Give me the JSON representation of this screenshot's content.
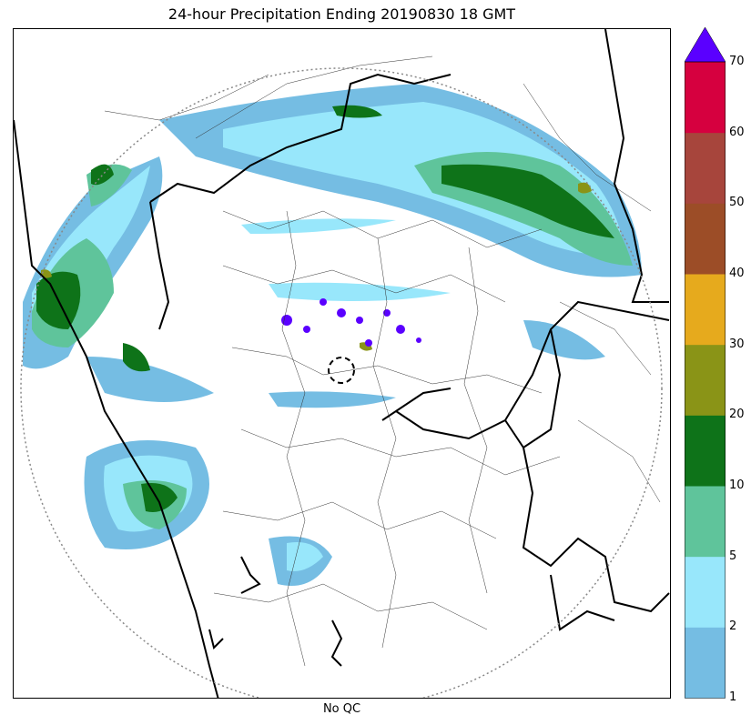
{
  "title": "24-hour Precipitation Ending 20190830 18 GMT",
  "xlabel": "No QC",
  "colorbar": {
    "levels": [
      "1",
      "2",
      "5",
      "10",
      "20",
      "30",
      "40",
      "50",
      "60",
      "70"
    ],
    "colors": [
      "#75bde3",
      "#98e7fb",
      "#5fc49b",
      "#0e7319",
      "#8a9417",
      "#e6aa1d",
      "#9c4d27",
      "#a7453c",
      "#d6003f"
    ],
    "extend_max_color": "#5a00ff"
  },
  "legend_colors": {
    "rain_1_2": "#75bde3",
    "rain_2_5": "#98e7fb",
    "rain_5_10": "#5fc49b",
    "rain_10_20": "#0e7319",
    "rain_20_30": "#8a9417",
    "over_70": "#5a00ff"
  }
}
